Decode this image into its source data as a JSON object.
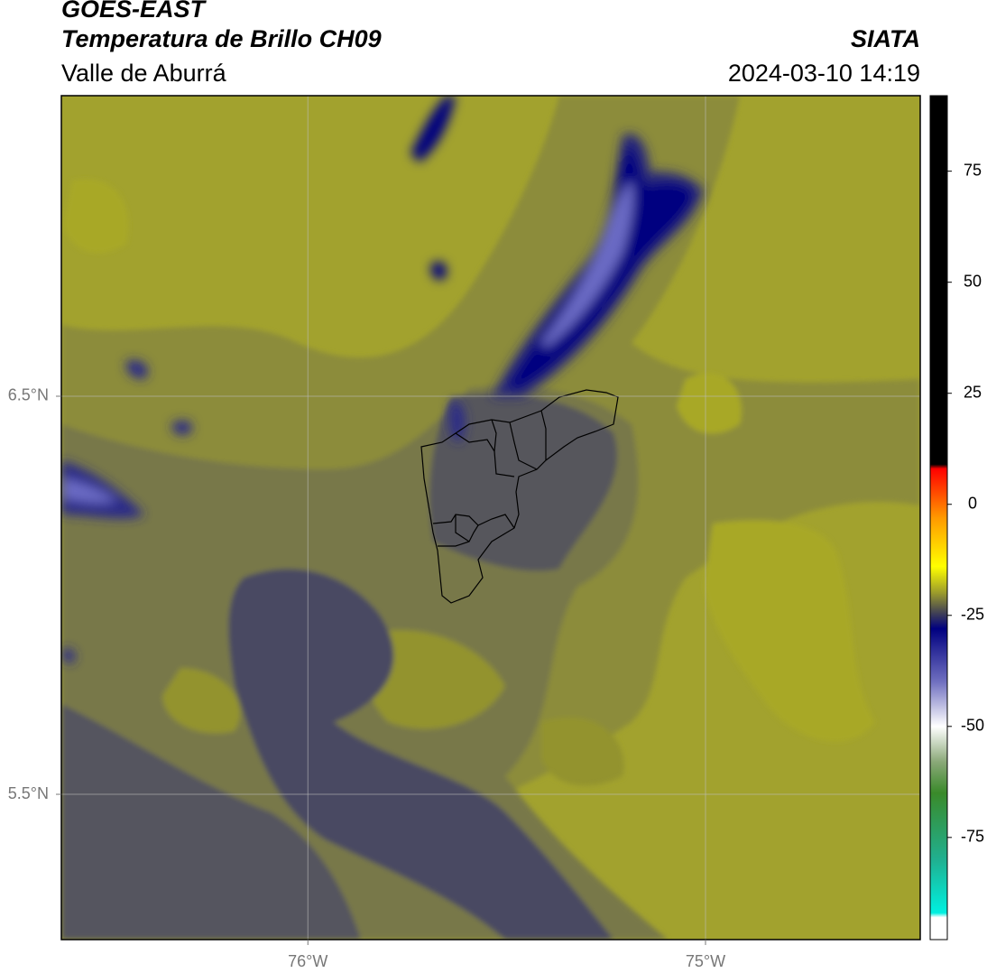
{
  "header": {
    "title": "GOES-EAST",
    "subtitle": "Temperatura de Brillo CH09",
    "region": "Valle de Aburrá",
    "source": "SIATA",
    "datetime": "2024-03-10 14:19"
  },
  "map": {
    "xlim": [
      -76.62,
      -74.46
    ],
    "ylim": [
      5.135,
      7.255
    ],
    "xticks": [
      {
        "value": -76,
        "label": "76°W"
      },
      {
        "value": -75,
        "label": "75°W"
      }
    ],
    "yticks": [
      {
        "value": 6.5,
        "label": "6.5°N"
      },
      {
        "value": 5.5,
        "label": "5.5°N"
      }
    ],
    "grid": true
  },
  "colorbar": {
    "lim": [
      -98,
      92
    ],
    "ticks": [
      75,
      50,
      25,
      0,
      -25,
      -50,
      -75
    ],
    "stops": [
      {
        "value": 92,
        "color": "#000000"
      },
      {
        "value": 9,
        "color": "#000000"
      },
      {
        "value": 8,
        "color": "#ff0000"
      },
      {
        "value": -3,
        "color": "#ff9900"
      },
      {
        "value": -14,
        "color": "#ffff00"
      },
      {
        "value": -20,
        "color": "#9a9a2c"
      },
      {
        "value": -24,
        "color": "#4a4a50"
      },
      {
        "value": -28,
        "color": "#000080"
      },
      {
        "value": -40,
        "color": "#7070c0"
      },
      {
        "value": -50,
        "color": "#ffffff"
      },
      {
        "value": -58,
        "color": "#8aa878"
      },
      {
        "value": -65,
        "color": "#3a8a2a"
      },
      {
        "value": -80,
        "color": "#20b090"
      },
      {
        "value": -92,
        "color": "#00f0e0"
      },
      {
        "value": -93,
        "color": "#ffffff"
      },
      {
        "value": -98,
        "color": "#ffffff"
      }
    ]
  }
}
